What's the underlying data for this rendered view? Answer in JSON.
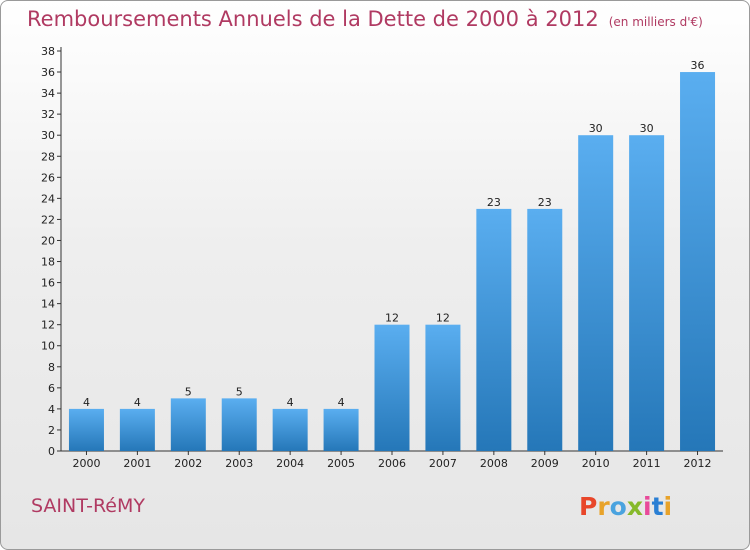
{
  "header": {
    "title": "Remboursements Annuels de la Dette de 2000 à 2012",
    "unit": "(en milliers d'€)"
  },
  "footer": {
    "place": "SAINT-RéMY",
    "logo_text": "Proxiti",
    "logo_colors": [
      "#e8462a",
      "#e8a32a",
      "#4aa3df",
      "#86b92a",
      "#e84a9a",
      "#2a7fd4",
      "#e8a32a"
    ]
  },
  "colors": {
    "bar_top": "#5aaef0",
    "bar_bottom": "#2577b8",
    "axis": "#333333",
    "title": "#b03a62"
  },
  "chart_data": {
    "type": "bar",
    "title": "Remboursements Annuels de la Dette de 2000 à 2012",
    "categories": [
      "2000",
      "2001",
      "2002",
      "2003",
      "2004",
      "2005",
      "2006",
      "2007",
      "2008",
      "2009",
      "2010",
      "2011",
      "2012"
    ],
    "values": [
      4,
      4,
      5,
      5,
      4,
      4,
      12,
      12,
      23,
      23,
      30,
      30,
      36
    ],
    "ylim": [
      0,
      38
    ],
    "ytick_step": 2,
    "xlabel": "",
    "ylabel": "",
    "grid": false,
    "data_labels": true
  }
}
